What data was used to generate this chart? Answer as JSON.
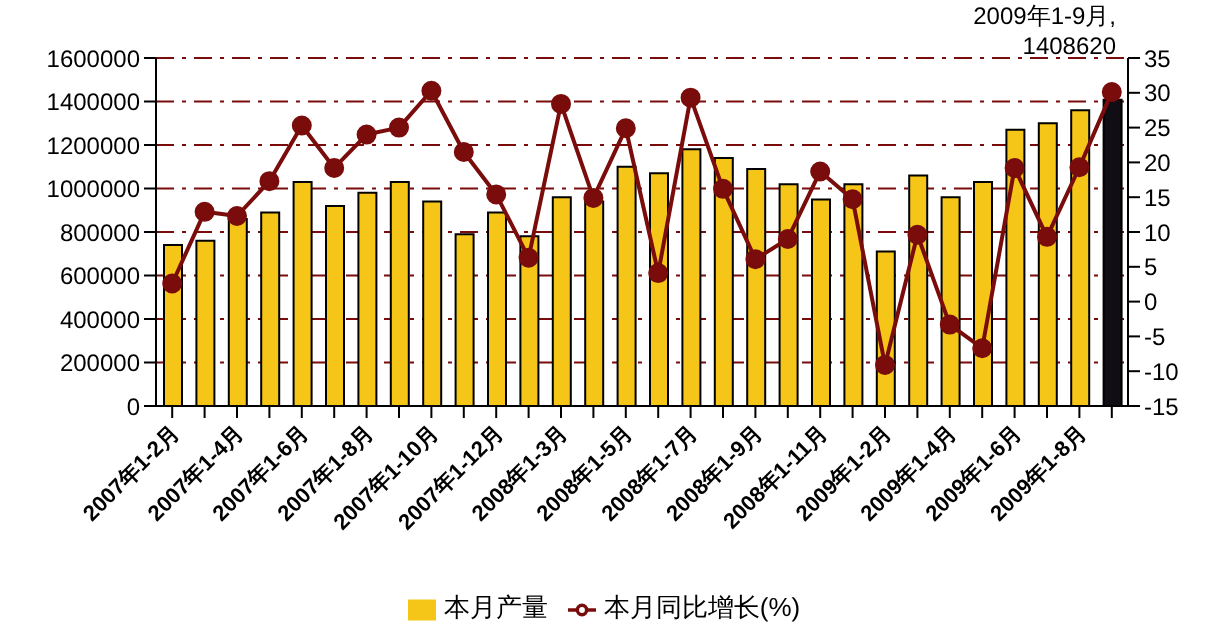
{
  "chart_data": {
    "type": "bar",
    "categories": [
      "2007年1-2月",
      null,
      "2007年1-4月",
      null,
      "2007年1-6月",
      null,
      "2007年1-8月",
      null,
      "2007年1-10月",
      null,
      "2007年1-12月",
      null,
      "2008年1-3月",
      null,
      "2008年1-5月",
      null,
      "2008年1-7月",
      null,
      "2008年1-9月",
      null,
      "2008年1-11月",
      null,
      "2009年1-2月",
      null,
      "2009年1-4月",
      null,
      "2009年1-6月",
      null,
      "2009年1-8月",
      null
    ],
    "series": [
      {
        "name": "本月产量",
        "colors": [
          "#f5c518",
          "#f5c518",
          "#f5c518",
          "#f5c518",
          "#f5c518",
          "#f5c518",
          "#f5c518",
          "#f5c518",
          "#f5c518",
          "#f5c518",
          "#f5c518",
          "#f5c518",
          "#f5c518",
          "#f5c518",
          "#f5c518",
          "#f5c518",
          "#f5c518",
          "#f5c518",
          "#f5c518",
          "#f5c518",
          "#f5c518",
          "#f5c518",
          "#f5c518",
          "#f5c518",
          "#f5c518",
          "#f5c518",
          "#f5c518",
          "#f5c518",
          "#f5c518",
          "#110d14"
        ],
        "color": "#f5c518",
        "values": [
          740000,
          760000,
          860000,
          890000,
          1030000,
          920000,
          980000,
          1030000,
          940000,
          790000,
          890000,
          780000,
          960000,
          940000,
          1100000,
          1070000,
          1180000,
          1140000,
          1090000,
          1020000,
          950000,
          1020000,
          710000,
          1060000,
          960000,
          1030000,
          1270000,
          1300000,
          1360000,
          1408620
        ]
      },
      {
        "name": "本月同比增长(%)",
        "type": "line",
        "axis": "y2",
        "color": "#7a0c0c",
        "values": [
          2.6,
          12.9,
          12.3,
          17.3,
          25.3,
          19.2,
          24.0,
          25.0,
          30.3,
          21.5,
          15.4,
          6.3,
          28.4,
          14.9,
          24.9,
          4.1,
          29.3,
          16.2,
          6.1,
          9.0,
          18.7,
          14.7,
          -9.1,
          9.6,
          -3.3,
          -6.7,
          19.2,
          9.3,
          19.3,
          30.1
        ]
      }
    ],
    "ylim": [
      0,
      1600000
    ],
    "yticks": [
      0,
      200000,
      400000,
      600000,
      800000,
      1000000,
      1200000,
      1400000,
      1600000
    ],
    "y2lim": [
      -15,
      35
    ],
    "y2ticks": [
      -15,
      -10,
      -5,
      0,
      5,
      10,
      15,
      20,
      25,
      30,
      35
    ],
    "grid": "y",
    "legend": "bottom",
    "marker": "circle",
    "line_style": "solid",
    "annotations": [
      "2009年1-9月,\n1408620"
    ]
  }
}
